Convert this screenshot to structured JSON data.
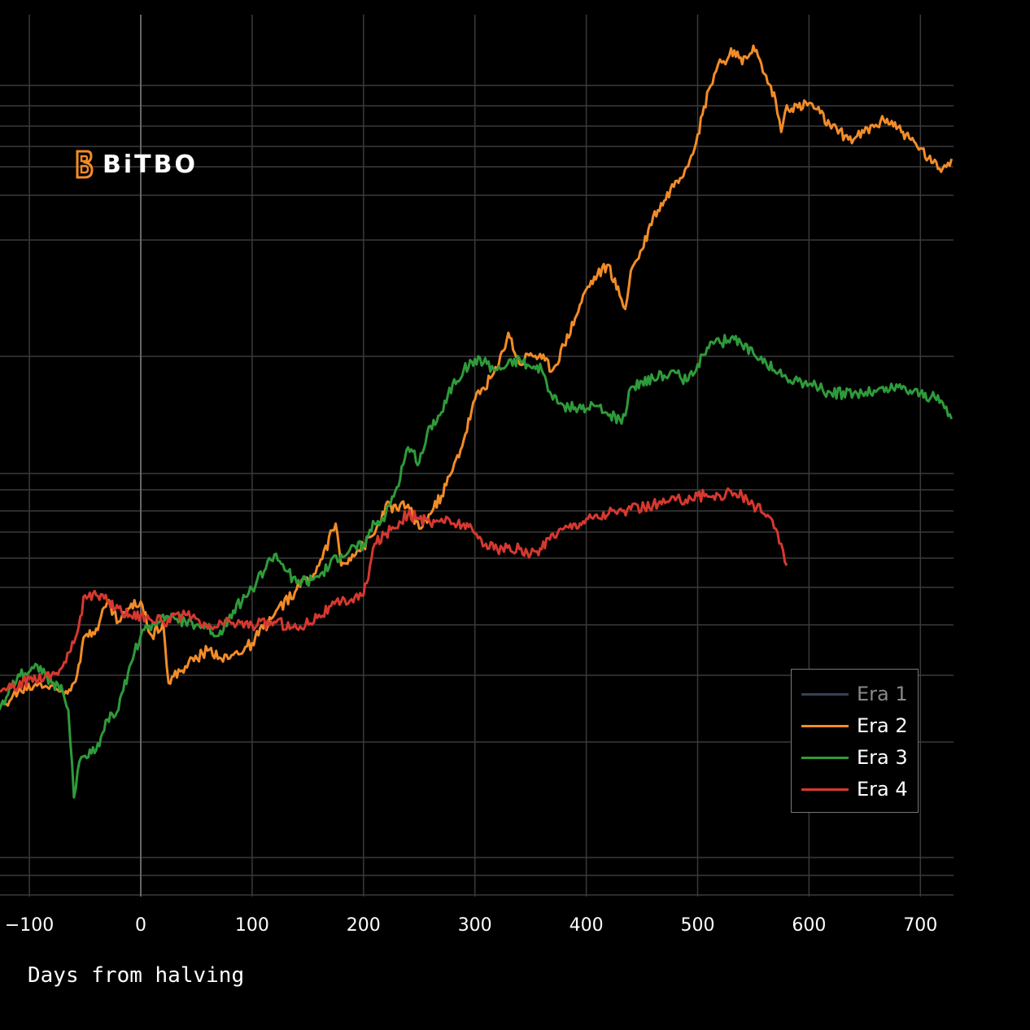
{
  "chart_data": {
    "type": "line",
    "title": "",
    "xlabel": "Days from halving",
    "ylabel": "",
    "xlim": [
      -127,
      728
    ],
    "xticks": [
      -100,
      0,
      100,
      200,
      300,
      400,
      500,
      600,
      700
    ],
    "xtick_labels": [
      "−100",
      "0",
      "100",
      "200",
      "300",
      "400",
      "500",
      "600",
      "700"
    ],
    "ylim": [
      0,
      1000
    ],
    "y_scale": "log",
    "yticks_shown": false,
    "grid": true,
    "legend_position": "bottom-right",
    "series": [
      {
        "name": "Era 1",
        "color": "#3a3f58",
        "label_color": "#888888",
        "x": [],
        "y": []
      },
      {
        "name": "Era 2",
        "color": "#f28c28",
        "label_color": "#ffffff",
        "x": [
          -127,
          -110,
          -90,
          -70,
          -60,
          -50,
          -40,
          -30,
          -20,
          -10,
          0,
          10,
          20,
          25,
          40,
          60,
          80,
          100,
          110,
          120,
          140,
          160,
          175,
          180,
          190,
          200,
          210,
          220,
          230,
          240,
          250,
          260,
          270,
          280,
          290,
          300,
          320,
          330,
          340,
          350,
          360,
          370,
          380,
          390,
          400,
          410,
          420,
          430,
          435,
          440,
          450,
          460,
          470,
          480,
          490,
          500,
          510,
          515,
          520,
          525,
          530,
          540,
          550,
          560,
          570,
          575,
          580,
          590,
          600,
          610,
          620,
          640,
          660,
          670,
          680,
          690,
          700,
          710,
          720,
          728
        ],
        "y": [
          300,
          320,
          330,
          320,
          330,
          390,
          400,
          440,
          410,
          430,
          440,
          390,
          410,
          330,
          350,
          370,
          360,
          380,
          400,
          420,
          460,
          500,
          580,
          500,
          520,
          535,
          560,
          620,
          610,
          620,
          570,
          600,
          640,
          700,
          780,
          900,
          1000,
          1140,
          1020,
          1060,
          1040,
          1000,
          1090,
          1200,
          1330,
          1400,
          1450,
          1300,
          1240,
          1420,
          1530,
          1720,
          1820,
          1950,
          2050,
          2300,
          2700,
          2850,
          3000,
          2950,
          3120,
          2950,
          3150,
          2850,
          2600,
          2320,
          2550,
          2530,
          2570,
          2480,
          2350,
          2260,
          2380,
          2430,
          2360,
          2270,
          2190,
          2080,
          2040,
          2110
        ]
      },
      {
        "name": "Era 3",
        "color": "#2e9b3a",
        "label_color": "#ffffff",
        "x": [
          -127,
          -110,
          -90,
          -80,
          -70,
          -65,
          -60,
          -55,
          -50,
          -40,
          -30,
          -20,
          -10,
          0,
          20,
          40,
          60,
          70,
          80,
          100,
          120,
          140,
          160,
          180,
          200,
          210,
          220,
          230,
          240,
          250,
          260,
          270,
          280,
          290,
          300,
          320,
          340,
          350,
          360,
          370,
          380,
          390,
          400,
          410,
          420,
          430,
          435,
          440,
          450,
          460,
          470,
          480,
          490,
          500,
          510,
          520,
          530,
          540,
          550,
          560,
          570,
          580,
          590,
          600,
          620,
          640,
          660,
          680,
          700,
          710,
          720,
          728
        ],
        "y": [
          300,
          340,
          350,
          330,
          320,
          300,
          220,
          250,
          255,
          260,
          290,
          300,
          350,
          390,
          420,
          410,
          400,
          390,
          420,
          460,
          520,
          470,
          480,
          520,
          540,
          580,
          600,
          660,
          760,
          720,
          820,
          860,
          950,
          1000,
          1040,
          1000,
          1040,
          1010,
          1000,
          900,
          880,
          875,
          870,
          880,
          850,
          840,
          850,
          940,
          960,
          970,
          980,
          990,
          960,
          1020,
          1080,
          1100,
          1120,
          1090,
          1060,
          1040,
          990,
          970,
          960,
          950,
          920,
          920,
          925,
          940,
          920,
          910,
          890,
          840
        ]
      },
      {
        "name": "Era 4",
        "color": "#d6382f",
        "label_color": "#ffffff",
        "x": [
          -127,
          -110,
          -100,
          -80,
          -70,
          -60,
          -50,
          -40,
          -30,
          -20,
          -10,
          0,
          20,
          40,
          60,
          80,
          100,
          120,
          140,
          160,
          180,
          200,
          210,
          220,
          240,
          250,
          260,
          270,
          280,
          290,
          300,
          310,
          320,
          340,
          350,
          360,
          370,
          380,
          390,
          400,
          420,
          440,
          460,
          480,
          500,
          520,
          530,
          540,
          550,
          560,
          570,
          575,
          580
        ],
        "y": [
          320,
          325,
          335,
          340,
          350,
          380,
          450,
          450,
          440,
          430,
          420,
          420,
          410,
          420,
          400,
          410,
          405,
          410,
          400,
          420,
          440,
          450,
          540,
          560,
          600,
          590,
          580,
          590,
          580,
          580,
          560,
          540,
          530,
          530,
          520,
          530,
          560,
          570,
          580,
          590,
          600,
          610,
          620,
          630,
          640,
          640,
          650,
          640,
          620,
          600,
          570,
          540,
          500
        ]
      }
    ]
  },
  "logo": {
    "text": "BiTBO",
    "mark_color": "#f28c28",
    "text_color": "#ffffff"
  }
}
